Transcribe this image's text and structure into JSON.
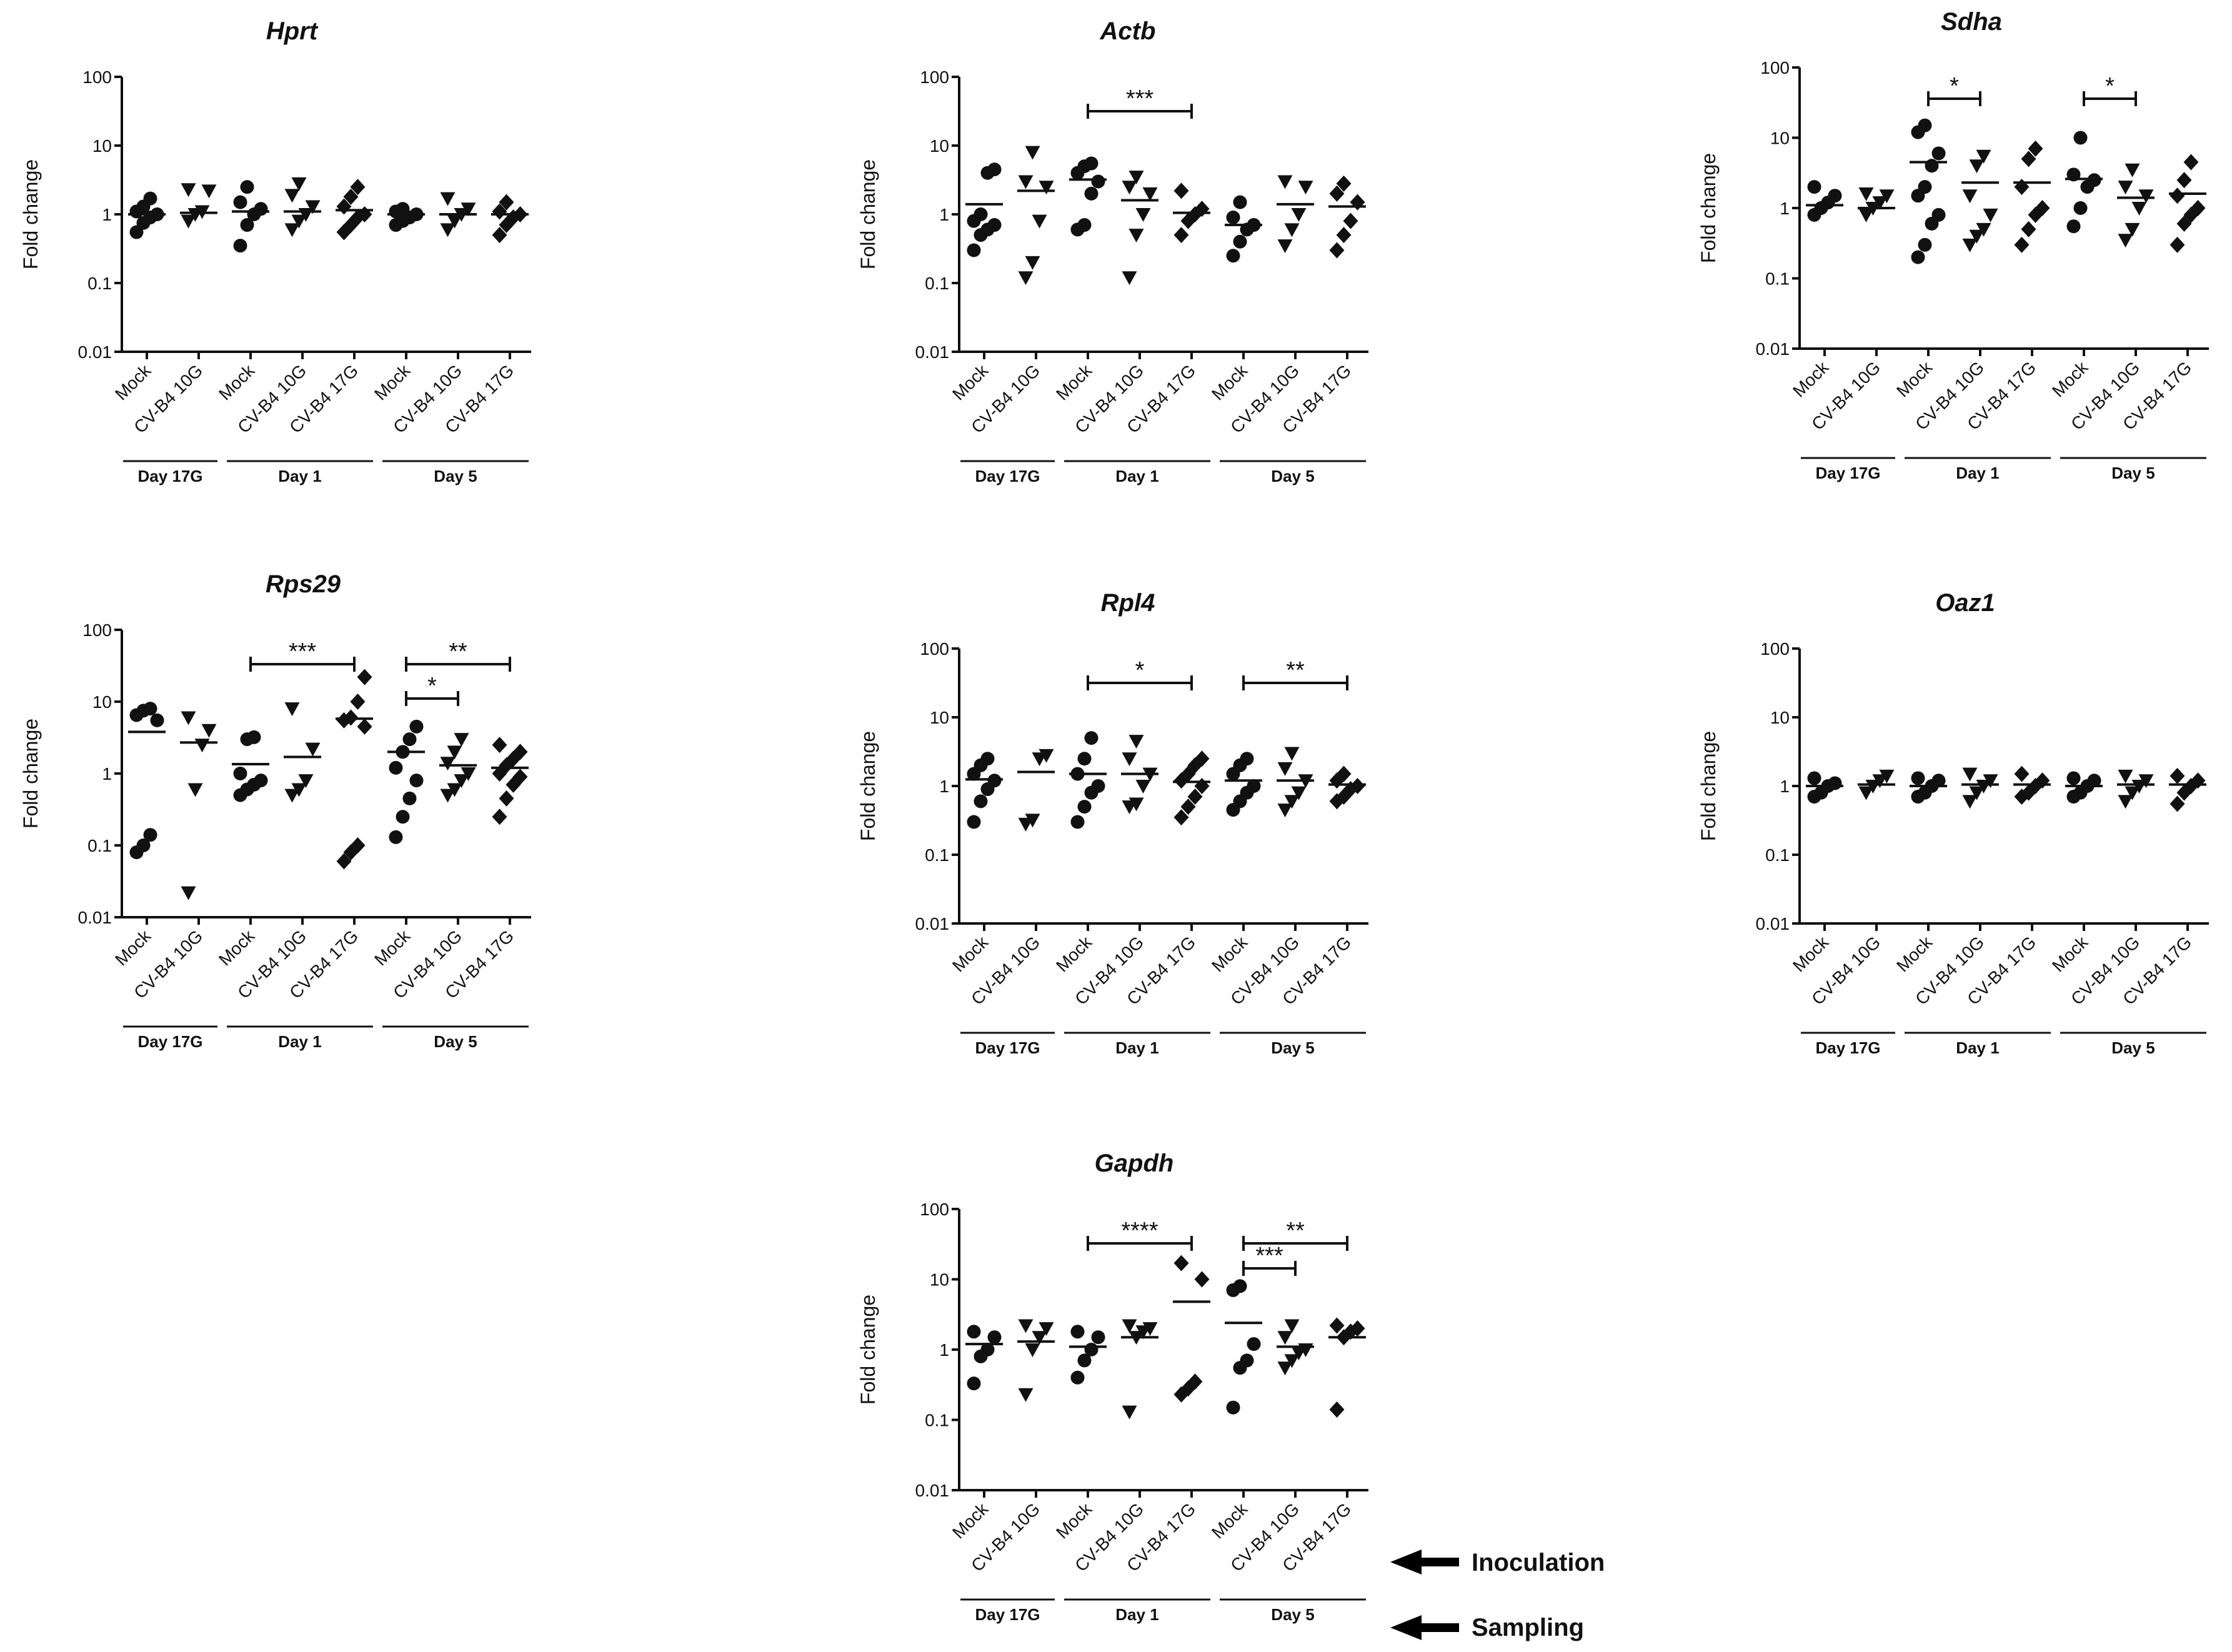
{
  "y_axis_label": "Fold change",
  "y_ticks": [
    "0.01",
    "0.1",
    "1",
    "10",
    "100"
  ],
  "categories": [
    "Mock",
    "CV-B4 10G",
    "Mock",
    "CV-B4 10G",
    "CV-B4 17G",
    "Mock",
    "CV-B4 10G",
    "CV-B4 17G"
  ],
  "day_groups": [
    {
      "label": "Day 17G",
      "start": 0,
      "end": 1
    },
    {
      "label": "Day 1",
      "start": 2,
      "end": 4
    },
    {
      "label": "Day 5",
      "start": 5,
      "end": 7
    }
  ],
  "legend": {
    "inoculation": "Inoculation",
    "sampling": "Sampling"
  },
  "chart_data": [
    {
      "type": "scatter",
      "title": "Hprt",
      "ylabel": "Fold change",
      "yscale": "log",
      "ylim": [
        0.01,
        100
      ],
      "means": [
        1.0,
        1.05,
        1.1,
        1.1,
        1.15,
        1.0,
        1.0,
        1.0
      ],
      "points": [
        [
          0.55,
          0.75,
          0.9,
          1.0,
          1.1,
          1.3,
          1.7
        ],
        [
          0.8,
          1.0,
          1.1,
          2.2,
          2.3
        ],
        [
          0.35,
          0.7,
          1.0,
          1.2,
          1.5,
          2.5
        ],
        [
          0.6,
          0.8,
          1.0,
          1.3,
          1.9,
          2.8
        ],
        [
          0.55,
          0.7,
          0.9,
          1.0,
          1.3,
          1.8,
          2.5
        ],
        [
          0.7,
          0.8,
          0.9,
          1.0,
          1.1,
          1.2
        ],
        [
          0.6,
          0.8,
          1.0,
          1.2,
          1.7
        ],
        [
          0.5,
          0.7,
          0.9,
          1.0,
          1.1,
          1.5
        ]
      ],
      "markers": [
        "circle",
        "tri",
        "circle",
        "tri",
        "diamond",
        "circle",
        "tri",
        "diamond"
      ],
      "significance": []
    },
    {
      "type": "scatter",
      "title": "Actb",
      "ylabel": "Fold change",
      "yscale": "log",
      "ylim": [
        0.01,
        100
      ],
      "means": [
        1.4,
        2.2,
        3.2,
        1.6,
        1.05,
        0.7,
        1.4,
        1.3
      ],
      "points": [
        [
          0.3,
          0.5,
          0.6,
          0.7,
          0.8,
          1.0,
          4.0,
          4.5
        ],
        [
          0.12,
          0.2,
          0.8,
          2.5,
          3.0,
          8.0
        ],
        [
          0.6,
          0.7,
          2.0,
          3.0,
          4.0,
          5.0,
          5.5
        ],
        [
          0.12,
          0.5,
          1.0,
          2.0,
          2.5,
          3.5
        ],
        [
          0.5,
          0.8,
          1.0,
          1.2,
          2.2
        ],
        [
          0.25,
          0.4,
          0.6,
          0.7,
          0.9,
          1.5
        ],
        [
          0.35,
          0.6,
          1.0,
          2.5,
          3.0
        ],
        [
          0.3,
          0.5,
          0.8,
          1.5,
          2.0,
          2.8
        ]
      ],
      "markers": [
        "circle",
        "tri",
        "circle",
        "tri",
        "diamond",
        "circle",
        "tri",
        "diamond"
      ],
      "significance": [
        {
          "from": 2,
          "to": 4,
          "label": "***"
        }
      ]
    },
    {
      "type": "scatter",
      "title": "Sdha",
      "ylabel": "Fold change",
      "yscale": "log",
      "ylim": [
        0.01,
        100
      ],
      "means": [
        1.1,
        1.0,
        4.5,
        2.3,
        2.3,
        2.6,
        1.4,
        1.6
      ],
      "points": [
        [
          0.8,
          1.0,
          1.2,
          1.5,
          2.0
        ],
        [
          0.8,
          1.0,
          1.2,
          1.5,
          1.6
        ],
        [
          0.2,
          0.3,
          0.6,
          0.8,
          1.5,
          2.0,
          4.0,
          6.0,
          12.0,
          15.0
        ],
        [
          0.3,
          0.4,
          0.5,
          0.8,
          1.5,
          4.0,
          5.5
        ],
        [
          0.3,
          0.5,
          0.8,
          1.0,
          2.0,
          5.0,
          7.0
        ],
        [
          0.55,
          1.0,
          2.0,
          2.5,
          3.0,
          10.0
        ],
        [
          0.35,
          0.5,
          1.0,
          1.5,
          2.0,
          3.5
        ],
        [
          0.3,
          0.6,
          0.8,
          1.0,
          1.5,
          2.5,
          4.5
        ]
      ],
      "markers": [
        "circle",
        "tri",
        "circle",
        "tri",
        "diamond",
        "circle",
        "tri",
        "diamond"
      ],
      "significance": [
        {
          "from": 2,
          "to": 3,
          "label": "*"
        },
        {
          "from": 5,
          "to": 6,
          "label": "*"
        }
      ]
    },
    {
      "type": "scatter",
      "title": "Rps29",
      "ylabel": "Fold change",
      "yscale": "log",
      "ylim": [
        0.01,
        100
      ],
      "means": [
        3.8,
        2.7,
        1.35,
        1.7,
        5.8,
        2.0,
        1.3,
        1.2
      ],
      "points": [
        [
          0.08,
          0.1,
          0.14,
          5.5,
          6.5,
          7.5,
          8.0
        ],
        [
          0.022,
          0.6,
          2.5,
          4.0,
          6.0
        ],
        [
          0.5,
          0.6,
          0.7,
          0.8,
          1.0,
          3.0,
          3.2
        ],
        [
          0.5,
          0.6,
          0.8,
          2.2,
          8.0
        ],
        [
          0.06,
          0.08,
          0.1,
          4.5,
          5.5,
          6.0,
          10.0,
          22.0
        ],
        [
          0.13,
          0.25,
          0.45,
          0.8,
          1.2,
          2.0,
          3.0,
          4.5
        ],
        [
          0.5,
          0.6,
          0.8,
          1.0,
          1.4,
          2.0,
          3.0
        ],
        [
          0.25,
          0.45,
          0.7,
          0.9,
          1.0,
          1.3,
          1.6,
          2.0,
          2.5
        ]
      ],
      "markers": [
        "circle",
        "tri",
        "circle",
        "tri",
        "diamond",
        "circle",
        "tri",
        "diamond"
      ],
      "significance": [
        {
          "from": 2,
          "to": 4,
          "label": "***"
        },
        {
          "from": 5,
          "to": 7,
          "label": "**"
        },
        {
          "from": 5,
          "to": 6,
          "label": "*"
        }
      ]
    },
    {
      "type": "scatter",
      "title": "Rpl4",
      "ylabel": "Fold change",
      "yscale": "log",
      "ylim": [
        0.01,
        100
      ],
      "means": [
        1.25,
        1.6,
        1.5,
        1.5,
        1.15,
        1.2,
        1.2,
        1.05
      ],
      "points": [
        [
          0.3,
          0.6,
          0.9,
          1.2,
          1.5,
          2.0,
          2.5
        ],
        [
          0.28,
          0.32,
          2.5,
          2.8
        ],
        [
          0.3,
          0.5,
          0.8,
          1.0,
          1.5,
          2.5,
          5.0
        ],
        [
          0.5,
          0.55,
          1.0,
          1.5,
          2.5,
          4.5
        ],
        [
          0.35,
          0.5,
          0.7,
          1.0,
          1.2,
          1.5,
          2.0,
          2.5
        ],
        [
          0.45,
          0.6,
          0.8,
          1.0,
          1.5,
          2.0,
          2.5
        ],
        [
          0.45,
          0.6,
          0.8,
          1.2,
          1.8,
          3.0
        ],
        [
          0.6,
          0.7,
          0.9,
          1.0,
          1.2,
          1.5
        ]
      ],
      "markers": [
        "circle",
        "tri",
        "circle",
        "tri",
        "diamond",
        "circle",
        "tri",
        "diamond"
      ],
      "significance": [
        {
          "from": 2,
          "to": 4,
          "label": "*"
        },
        {
          "from": 5,
          "to": 7,
          "label": "**"
        }
      ]
    },
    {
      "type": "scatter",
      "title": "Oaz1",
      "ylabel": "Fold change",
      "yscale": "log",
      "ylim": [
        0.01,
        100
      ],
      "means": [
        1.0,
        1.05,
        1.0,
        1.05,
        1.05,
        1.0,
        1.05,
        1.05
      ],
      "points": [
        [
          0.7,
          0.8,
          1.0,
          1.1,
          1.3
        ],
        [
          0.8,
          1.0,
          1.2,
          1.4
        ],
        [
          0.7,
          0.8,
          1.0,
          1.2,
          1.3
        ],
        [
          0.6,
          0.8,
          1.0,
          1.2,
          1.5
        ],
        [
          0.7,
          0.8,
          1.0,
          1.2,
          1.5
        ],
        [
          0.7,
          0.8,
          1.0,
          1.2,
          1.3
        ],
        [
          0.6,
          0.8,
          1.0,
          1.2,
          1.4
        ],
        [
          0.55,
          0.8,
          1.0,
          1.2,
          1.4
        ]
      ],
      "markers": [
        "circle",
        "tri",
        "circle",
        "tri",
        "diamond",
        "circle",
        "tri",
        "diamond"
      ],
      "significance": []
    },
    {
      "type": "scatter",
      "title": "Gapdh",
      "ylabel": "Fold change",
      "yscale": "log",
      "ylim": [
        0.01,
        100
      ],
      "means": [
        1.2,
        1.3,
        1.1,
        1.5,
        4.8,
        2.4,
        1.1,
        1.5
      ],
      "points": [
        [
          0.33,
          0.8,
          1.0,
          1.5,
          1.8
        ],
        [
          0.23,
          1.0,
          1.5,
          2.0,
          2.2
        ],
        [
          0.4,
          0.7,
          1.0,
          1.5,
          1.8
        ],
        [
          0.13,
          1.5,
          1.8,
          2.0,
          2.2
        ],
        [
          0.23,
          0.28,
          0.35,
          10.0,
          17.0
        ],
        [
          0.15,
          0.55,
          0.7,
          1.2,
          7.0,
          8.0
        ],
        [
          0.55,
          0.7,
          0.9,
          1.0,
          1.5,
          2.2
        ],
        [
          0.14,
          1.5,
          1.8,
          2.0,
          2.2
        ]
      ],
      "markers": [
        "circle",
        "tri",
        "circle",
        "tri",
        "diamond",
        "circle",
        "tri",
        "diamond"
      ],
      "significance": [
        {
          "from": 2,
          "to": 4,
          "label": "****"
        },
        {
          "from": 5,
          "to": 7,
          "label": "**"
        },
        {
          "from": 5,
          "to": 6,
          "label": "***"
        }
      ]
    }
  ]
}
